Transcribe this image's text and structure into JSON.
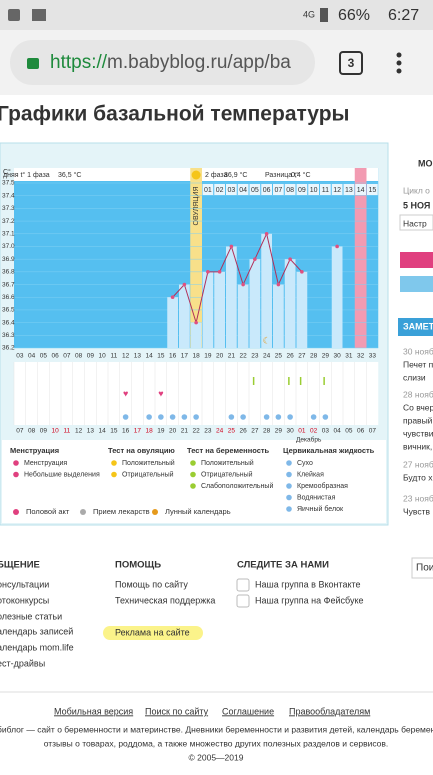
{
  "status_bar": {
    "network": "4G",
    "battery": "66%",
    "time": "6:27"
  },
  "browser": {
    "scheme": "https://",
    "rest": "m.babyblog.ru/app/ba",
    "tabs": "3"
  },
  "page_title": "Графики базальной температуры",
  "chart_data": {
    "type": "line",
    "y_label": "C°",
    "header": {
      "phase1": "дняя t° 1 фаза",
      "phase1_value": "36,5 °C",
      "phase2": "2 фаза",
      "phase2_value": "36,9 °C",
      "diff": "Разница t°",
      "diff_value": "0,4 °C"
    },
    "categories": [
      "03",
      "04",
      "05",
      "06",
      "07",
      "08",
      "09",
      "10",
      "11",
      "12",
      "13",
      "14",
      "15",
      "16",
      "17",
      "18",
      "19",
      "20",
      "21",
      "22",
      "23",
      "24",
      "25",
      "26",
      "27",
      "28",
      "29",
      "30",
      "31",
      "32",
      "33"
    ],
    "values": [
      null,
      null,
      null,
      null,
      null,
      null,
      null,
      null,
      null,
      null,
      null,
      null,
      null,
      36.6,
      36.7,
      36.4,
      36.8,
      36.8,
      37.0,
      36.7,
      36.9,
      37.1,
      36.7,
      36.9,
      36.8,
      null,
      null,
      37.0,
      null,
      null,
      null
    ],
    "ylim": [
      36.2,
      37.5
    ],
    "yticks": [
      36.2,
      36.3,
      36.4,
      36.5,
      36.6,
      36.7,
      36.8,
      36.9,
      {
        "value": 37,
        "label": "37.0"
      },
      37.1,
      37.2,
      37.3,
      37.4,
      37.5
    ],
    "dates": [
      "07",
      "08",
      "09",
      "10",
      "11",
      "12",
      "13",
      "14",
      "15",
      "16",
      "17",
      "18",
      "19",
      "20",
      "21",
      "22",
      "23",
      "24",
      "25",
      "26",
      "27",
      "28",
      "29",
      "30",
      "01",
      "02",
      "03",
      "04",
      "05",
      "06",
      "07"
    ],
    "weekend": [
      false,
      false,
      false,
      true,
      true,
      false,
      false,
      false,
      false,
      false,
      true,
      true,
      false,
      false,
      false,
      false,
      false,
      true,
      true,
      false,
      false,
      false,
      false,
      false,
      true,
      true,
      false,
      false,
      false,
      false,
      false
    ],
    "month_label": "Декабрь",
    "ovulation_label": "ОВУЛЯЦИЯ",
    "ovulation_day": "18",
    "period_day": "32",
    "luteal_days": [
      "01",
      "02",
      "03",
      "04",
      "05",
      "06",
      "07",
      "08",
      "09",
      "10",
      "11",
      "12",
      "13",
      "14",
      "15"
    ],
    "intercourse_days": [
      "12",
      "15"
    ],
    "test_days": [
      "23",
      "26",
      "27",
      "29"
    ],
    "fluid_days": [
      "12",
      "14",
      "15",
      "16",
      "17",
      "18",
      "21",
      "22",
      "24",
      "25",
      "26",
      "28",
      "29"
    ],
    "moon_day": "24",
    "plot_color": "#55bff0",
    "bar_color": "#c9e9fb",
    "line_color": "#b0305a",
    "point_color": "#e0507f",
    "ovulation_color": "#f8e08a",
    "period_color": "#f29bb2"
  },
  "legend": {
    "col1": {
      "title": "Менструация",
      "items": [
        "Менструация",
        "Небольшие выделения"
      ]
    },
    "col2": {
      "title": "Тест на овуляцию",
      "items": [
        "Положительный",
        "Отрицательный"
      ]
    },
    "col3": {
      "title": "Тест на беременность",
      "items": [
        "Положительный",
        "Отрицательный",
        "Слабоположительный"
      ]
    },
    "col4": {
      "title": "Цервикальная жидкость",
      "items": [
        "Сухо",
        "Клейкая",
        "Кремообразная",
        "Водянистая",
        "Яичный белок"
      ]
    },
    "extra": [
      "Половой акт",
      "Прием лекарств",
      "Лунный календарь"
    ]
  },
  "sidebar": [
    "МО",
    "Цикл о",
    "5 НОЯ",
    "Настр",
    "ЗАМЕТ",
    "30 нояб",
    "Печет п",
    "слизи",
    "28 нояб",
    "Со вчер",
    "правый",
    "чувстви",
    "вичник,",
    "27 нояб",
    "Будто х",
    "23 нояб",
    "Чувств"
  ],
  "footer": {
    "col1": {
      "title": "БЩЕНИЕ",
      "items": [
        "онсультации",
        "отоконкурсы",
        "олезные статьи",
        "алендарь записей",
        "алендарь mom.life",
        "ест-драйвы"
      ]
    },
    "col2": {
      "title": "ПОМОЩЬ",
      "items": [
        "Помощь по сайту",
        "Техническая поддержка",
        "Реклама на сайте"
      ]
    },
    "col3": {
      "title": "СЛЕДИТЕ ЗА НАМИ",
      "items": [
        "Наша группа в Вконтакте",
        "Наша группа на Фейсбуке"
      ]
    },
    "search": "Поис",
    "links": [
      "Мобильная версия",
      "Поиск по сайту",
      "Соглашение",
      "Правообладателям"
    ],
    "about": [
      "библог — сайт о беременности и материнстве. Дневники беременности и развития детей, календарь беременности, ка",
      "отзывы о товарах, роддома, а также множество других полезных разделов и сервисов.",
      "© 2005—2019"
    ]
  }
}
